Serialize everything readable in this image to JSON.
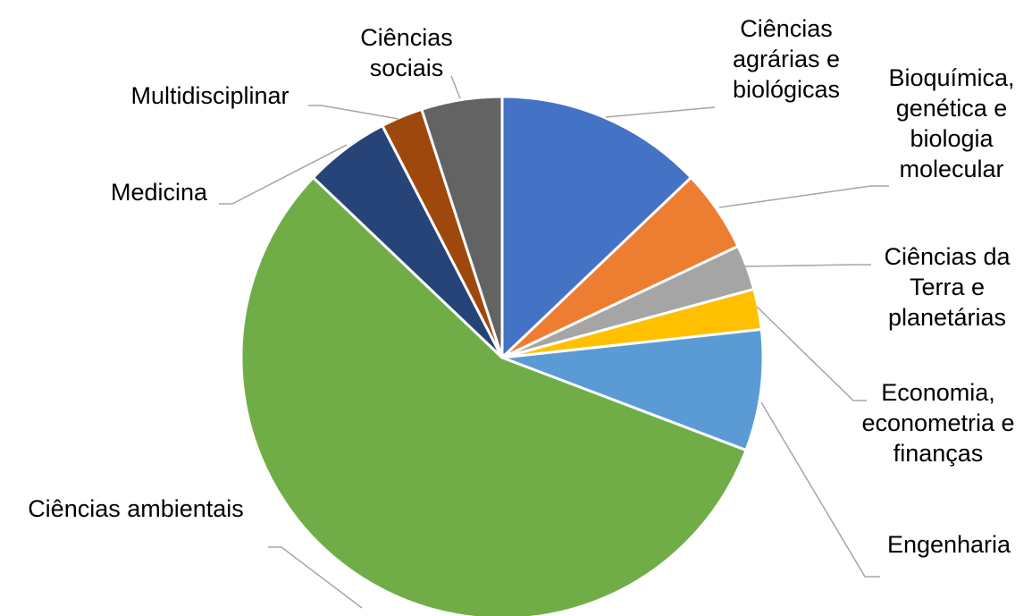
{
  "chart_data": {
    "type": "pie",
    "categories": [
      "Ciências agrárias e biológicas",
      "Bioquímica, genética e biologia molecular",
      "Ciências da Terra e planetárias",
      "Economia, econometria e finanças",
      "Engenharia",
      "Ciências ambientais",
      "Medicina",
      "Multidisciplinar",
      "Ciências sociais"
    ],
    "values": [
      12.9,
      5.1,
      2.8,
      2.5,
      7.5,
      56.4,
      5.3,
      2.6,
      5.0
    ],
    "colors": [
      "#4472c4",
      "#ed7d31",
      "#a5a5a5",
      "#ffc000",
      "#5b9bd5",
      "#70ad47",
      "#264478",
      "#9e480e",
      "#636363"
    ]
  }
}
